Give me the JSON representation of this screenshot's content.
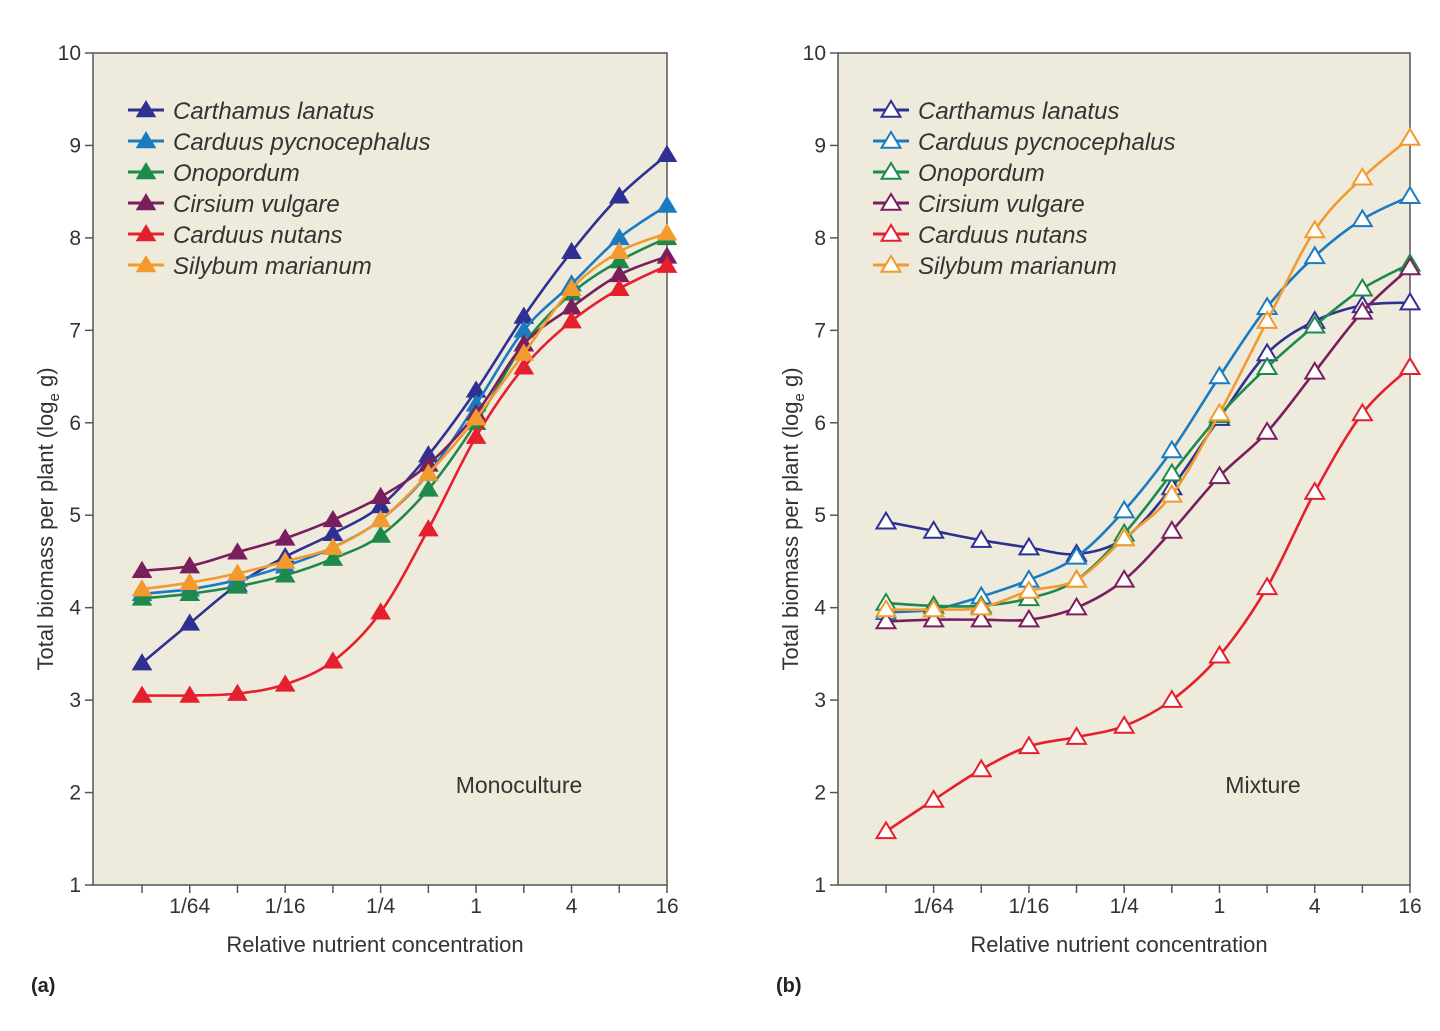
{
  "chart_data": [
    {
      "type": "line",
      "panel_label": "(a)",
      "annotation": "Monoculture",
      "xlabel": "Relative nutrient concentration",
      "ylabel_pre": "Total biomass per plant (log",
      "ylabel_sub": "e",
      "ylabel_post": " g)",
      "x": [
        "1/128",
        "1/64",
        "1/32",
        "1/16",
        "1/8",
        "1/4",
        "1/2",
        "1",
        "2",
        "4",
        "8",
        "16"
      ],
      "x_tick_labels": [
        "1/64",
        "1/16",
        "1/4",
        "1",
        "4",
        "16"
      ],
      "x_scale": "log2",
      "ylim": [
        1,
        10
      ],
      "y_ticks": [
        1,
        2,
        3,
        4,
        5,
        6,
        7,
        8,
        9,
        10
      ],
      "marker": "filled-triangle",
      "legend_position": "top-left",
      "series": [
        {
          "name": "Carthamus lanatus",
          "color": "#2e3192",
          "values": [
            3.4,
            3.83,
            4.25,
            4.55,
            4.8,
            5.1,
            5.65,
            6.35,
            7.15,
            7.85,
            8.45,
            8.9
          ]
        },
        {
          "name": "Carduus pycnocephalus",
          "color": "#1a7bc0",
          "values": [
            4.15,
            4.2,
            4.3,
            4.45,
            4.65,
            4.95,
            5.45,
            6.2,
            7.0,
            7.5,
            8.0,
            8.35
          ]
        },
        {
          "name": "Onopordum",
          "color": "#1e8a4a",
          "values": [
            4.1,
            4.15,
            4.23,
            4.35,
            4.53,
            4.78,
            5.28,
            6.0,
            6.85,
            7.4,
            7.75,
            8.0
          ]
        },
        {
          "name": "Cirsium vulgare",
          "color": "#7a1f5e",
          "values": [
            4.4,
            4.45,
            4.6,
            4.75,
            4.95,
            5.2,
            5.55,
            6.1,
            6.85,
            7.25,
            7.6,
            7.8
          ]
        },
        {
          "name": "Carduus nutans",
          "color": "#e5202e",
          "values": [
            3.05,
            3.05,
            3.07,
            3.17,
            3.42,
            3.95,
            4.85,
            5.85,
            6.6,
            7.1,
            7.45,
            7.7
          ]
        },
        {
          "name": "Silybum marianum",
          "color": "#f39a2e",
          "values": [
            4.2,
            4.27,
            4.37,
            4.5,
            4.65,
            4.95,
            5.45,
            6.05,
            6.75,
            7.45,
            7.85,
            8.05
          ]
        }
      ]
    },
    {
      "type": "line",
      "panel_label": "(b)",
      "annotation": "Mixture",
      "xlabel": "Relative nutrient concentration",
      "ylabel_pre": "Total biomass per plant (log",
      "ylabel_sub": "e",
      "ylabel_post": " g)",
      "x": [
        "1/128",
        "1/64",
        "1/32",
        "1/16",
        "1/8",
        "1/4",
        "1/2",
        "1",
        "2",
        "4",
        "8",
        "16"
      ],
      "x_tick_labels": [
        "1/64",
        "1/16",
        "1/4",
        "1",
        "4",
        "16"
      ],
      "x_scale": "log2",
      "ylim": [
        1,
        10
      ],
      "y_ticks": [
        1,
        2,
        3,
        4,
        5,
        6,
        7,
        8,
        9,
        10
      ],
      "marker": "open-triangle",
      "legend_position": "top-left",
      "series": [
        {
          "name": "Carthamus lanatus",
          "color": "#2e3192",
          "values": [
            4.93,
            4.83,
            4.73,
            4.65,
            4.58,
            4.75,
            5.3,
            6.05,
            6.75,
            7.1,
            7.27,
            7.3
          ]
        },
        {
          "name": "Carduus pycnocephalus",
          "color": "#1a7bc0",
          "values": [
            3.95,
            3.98,
            4.12,
            4.3,
            4.55,
            5.05,
            5.7,
            6.5,
            7.25,
            7.8,
            8.2,
            8.45
          ]
        },
        {
          "name": "Onopordum",
          "color": "#1e8a4a",
          "values": [
            4.05,
            4.02,
            4.02,
            4.1,
            4.3,
            4.8,
            5.45,
            6.08,
            6.6,
            7.05,
            7.45,
            7.72
          ]
        },
        {
          "name": "Cirsium vulgare",
          "color": "#7a1f5e",
          "values": [
            3.85,
            3.87,
            3.87,
            3.87,
            4.0,
            4.3,
            4.83,
            5.42,
            5.9,
            6.55,
            7.2,
            7.68
          ]
        },
        {
          "name": "Carduus nutans",
          "color": "#e5202e",
          "values": [
            1.58,
            1.92,
            2.25,
            2.5,
            2.6,
            2.72,
            3.0,
            3.48,
            4.22,
            5.25,
            6.1,
            6.6
          ]
        },
        {
          "name": "Silybum marianum",
          "color": "#f39a2e",
          "values": [
            3.98,
            3.98,
            4.0,
            4.18,
            4.3,
            4.75,
            5.22,
            6.1,
            7.1,
            8.08,
            8.65,
            9.08
          ]
        }
      ]
    }
  ],
  "background_color": "#efebdc"
}
